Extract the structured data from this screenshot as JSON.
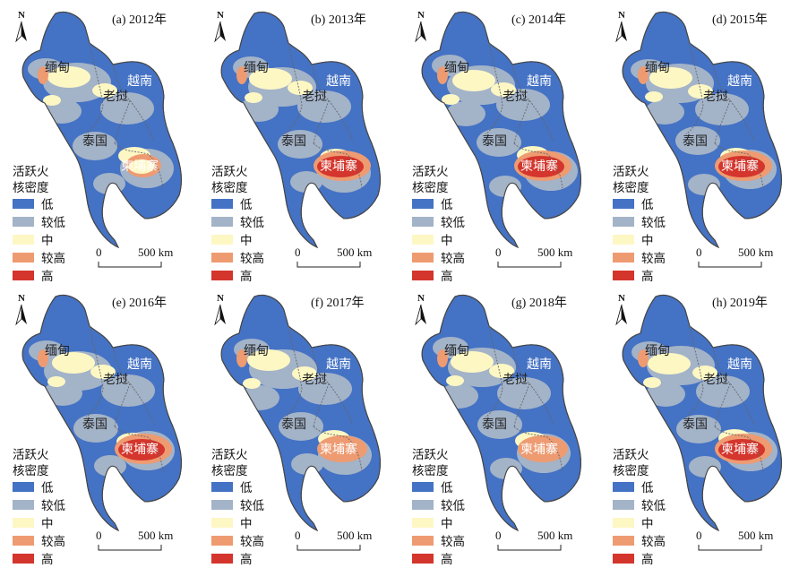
{
  "colors": {
    "low": "#4472c4",
    "mid_low": "#a3b3c8",
    "mid": "#fdf7c4",
    "mid_high": "#ee9b72",
    "high": "#d4352c",
    "boundary": "#555555",
    "text_dark": "#222222",
    "text_light": "#ffffff"
  },
  "icons": {
    "north_arrow": "north-arrow-icon"
  },
  "north_label": "N",
  "legend": {
    "title_line1": "活跃火",
    "title_line2": "核密度",
    "classes": [
      {
        "key": "low",
        "label": "低"
      },
      {
        "key": "mid_low",
        "label": "较低"
      },
      {
        "key": "mid",
        "label": "中"
      },
      {
        "key": "mid_high",
        "label": "较高"
      },
      {
        "key": "high",
        "label": "高"
      }
    ]
  },
  "scale_bar": {
    "start": "0",
    "end": "500 km"
  },
  "countries": [
    {
      "key": "myanmar",
      "label": "缅甸"
    },
    {
      "key": "laos",
      "label": "老挝"
    },
    {
      "key": "vietnam",
      "label": "越南"
    },
    {
      "key": "thailand",
      "label": "泰国"
    },
    {
      "key": "cambodia",
      "label": "柬埔寨"
    }
  ],
  "panels": [
    {
      "label": "(a) 2012年",
      "hotspot_level": "mid"
    },
    {
      "label": "(b) 2013年",
      "hotspot_level": "high"
    },
    {
      "label": "(c) 2014年",
      "hotspot_level": "high"
    },
    {
      "label": "(d) 2015年",
      "hotspot_level": "high"
    },
    {
      "label": "(e) 2016年",
      "hotspot_level": "high"
    },
    {
      "label": "(f) 2017年",
      "hotspot_level": "mid_high"
    },
    {
      "label": "(g) 2018年",
      "hotspot_level": "mid_high"
    },
    {
      "label": "(h) 2019年",
      "hotspot_level": "high"
    }
  ]
}
